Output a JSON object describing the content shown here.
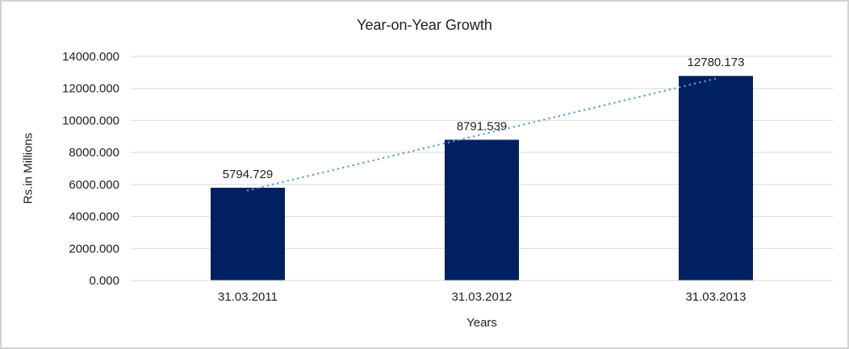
{
  "chart_data": {
    "type": "bar",
    "title": "Year-on-Year Growth",
    "xlabel": "Years",
    "ylabel": "Rs.in Millions",
    "categories": [
      "31.03.2011",
      "31.03.2012",
      "31.03.2013"
    ],
    "values": [
      5794.729,
      8791.539,
      12780.173
    ],
    "data_labels": [
      "5794.729",
      "8791.539",
      "12780.173"
    ],
    "ylim": [
      0,
      14000
    ],
    "yticks": [
      {
        "value": 0,
        "label": "0.000"
      },
      {
        "value": 2000,
        "label": "2000.000"
      },
      {
        "value": 4000,
        "label": "4000.000"
      },
      {
        "value": 6000,
        "label": "6000.000"
      },
      {
        "value": 8000,
        "label": "8000.000"
      },
      {
        "value": 10000,
        "label": "10000.000"
      },
      {
        "value": 12000,
        "label": "12000.000"
      },
      {
        "value": 14000,
        "label": "14000.000"
      }
    ],
    "grid": true,
    "legend": false,
    "trendline": {
      "type": "linear",
      "style": "dotted"
    },
    "colors": {
      "bar": "#002060",
      "trendline": "#5b9bd5",
      "gridline": "#d9d9d9",
      "axis_line": "#d9d9d9",
      "text": "#1f1f1f",
      "border": "#d2d2d2",
      "background": "#ffffff"
    }
  }
}
